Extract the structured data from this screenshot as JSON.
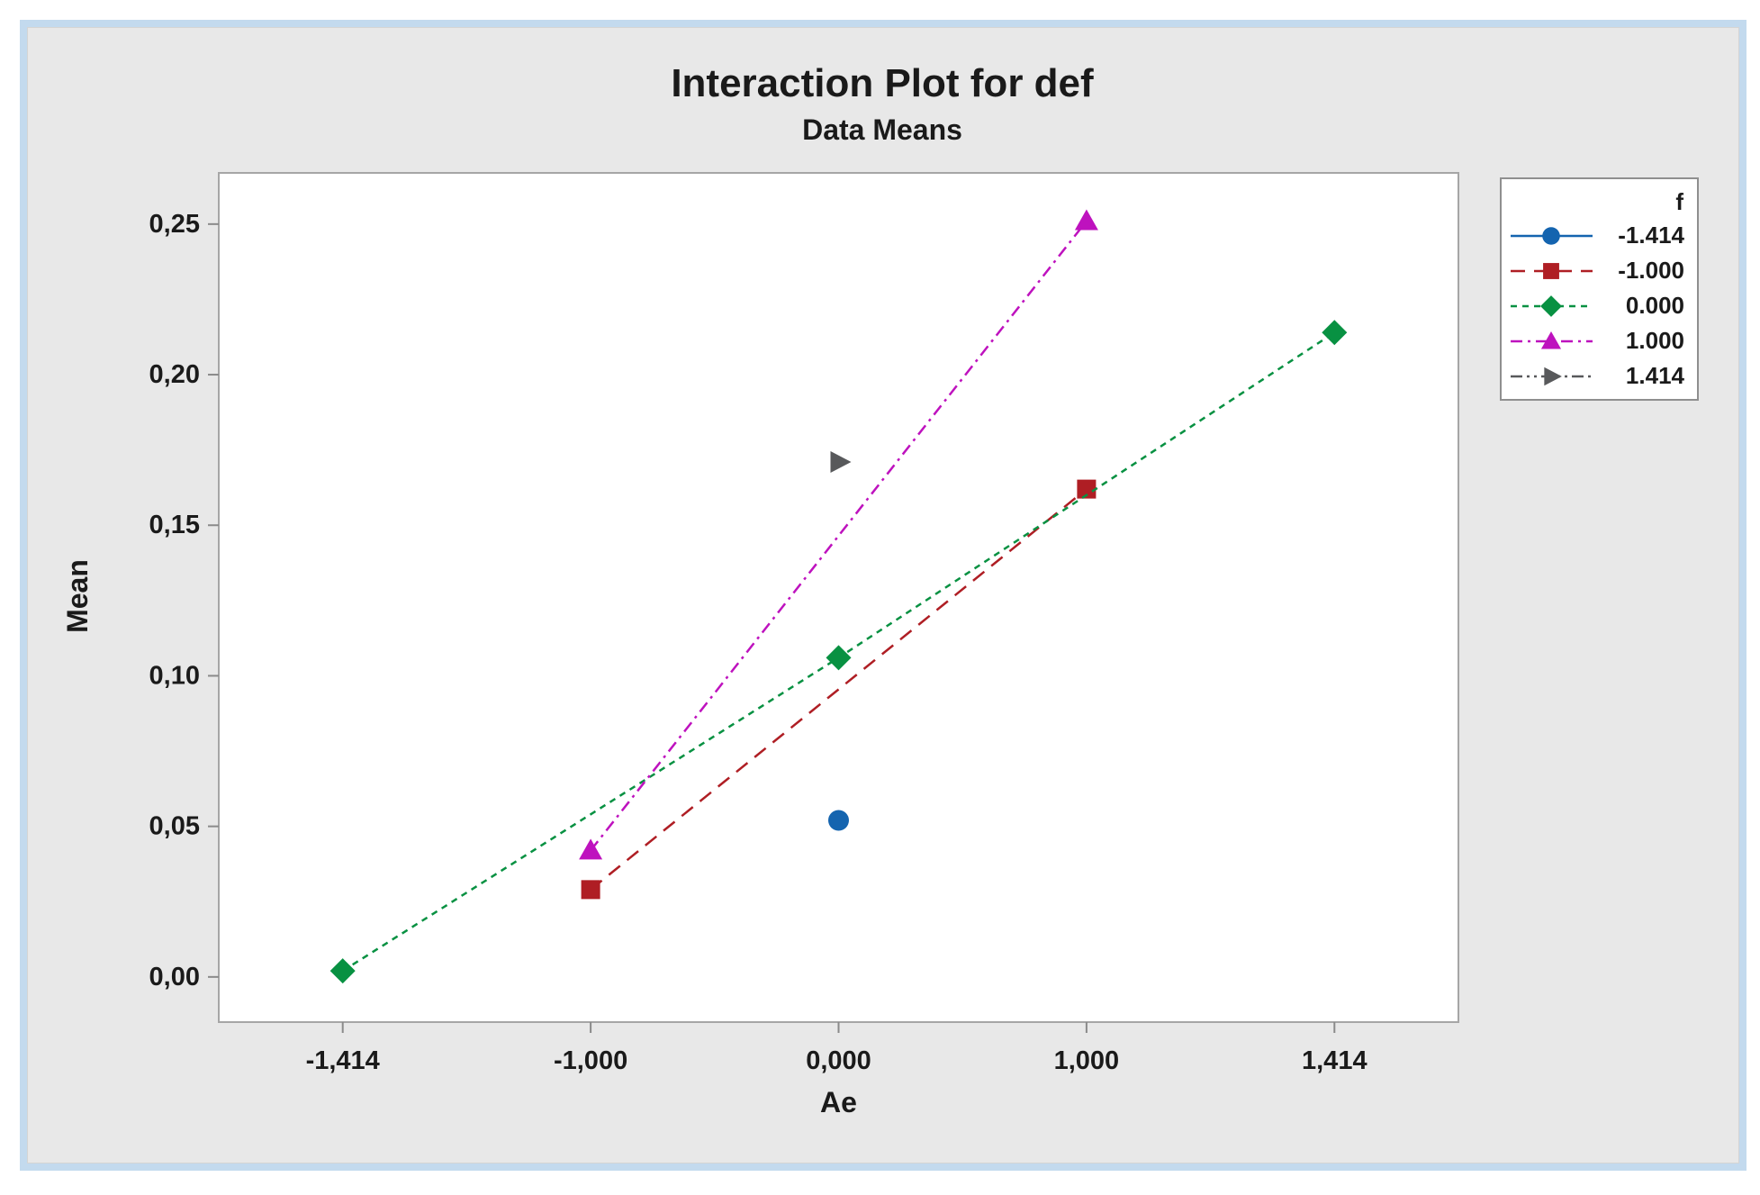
{
  "window": {
    "frame_color": "#c3daee",
    "canvas_color": "#e8e8e8",
    "plot_background": "#ffffff"
  },
  "chart_data": {
    "type": "line",
    "title": "Interaction Plot for def",
    "subtitle": "Data Means",
    "xlabel": "Ae",
    "ylabel": "Mean",
    "legend_title": "f",
    "legend_position": "top-right-outside",
    "grid": false,
    "x_categories": [
      "-1,414",
      "-1,000",
      "0,000",
      "1,000",
      "1,414"
    ],
    "x_values": [
      -1.414,
      -1.0,
      0.0,
      1.0,
      1.414
    ],
    "y_tick_labels": [
      "0,00",
      "0,05",
      "0,10",
      "0,15",
      "0,20",
      "0,25"
    ],
    "y_tick_values": [
      0.0,
      0.05,
      0.1,
      0.15,
      0.2,
      0.25
    ],
    "ylim": [
      -0.015,
      0.267
    ],
    "series": [
      {
        "name": "-1.414",
        "color": "#1464af",
        "marker": "circle",
        "line_style": "solid",
        "points": [
          {
            "x": 0.0,
            "y": 0.052
          }
        ]
      },
      {
        "name": "-1.000",
        "color": "#af1e24",
        "marker": "square",
        "line_style": "longdash",
        "points": [
          {
            "x": -1.0,
            "y": 0.029
          },
          {
            "x": 1.0,
            "y": 0.162
          }
        ]
      },
      {
        "name": "0.000",
        "color": "#089142",
        "marker": "diamond",
        "line_style": "shortdash",
        "points": [
          {
            "x": -1.414,
            "y": 0.002
          },
          {
            "x": 0.0,
            "y": 0.106
          },
          {
            "x": 1.414,
            "y": 0.214
          }
        ]
      },
      {
        "name": "1.000",
        "color": "#be12be",
        "marker": "triangle-up",
        "line_style": "dashdot",
        "points": [
          {
            "x": -1.0,
            "y": 0.042
          },
          {
            "x": 1.0,
            "y": 0.251
          }
        ]
      },
      {
        "name": "1.414",
        "color": "#58595b",
        "marker": "triangle-right",
        "line_style": "dashdotdot",
        "points": [
          {
            "x": 0.0,
            "y": 0.171
          }
        ]
      }
    ]
  }
}
